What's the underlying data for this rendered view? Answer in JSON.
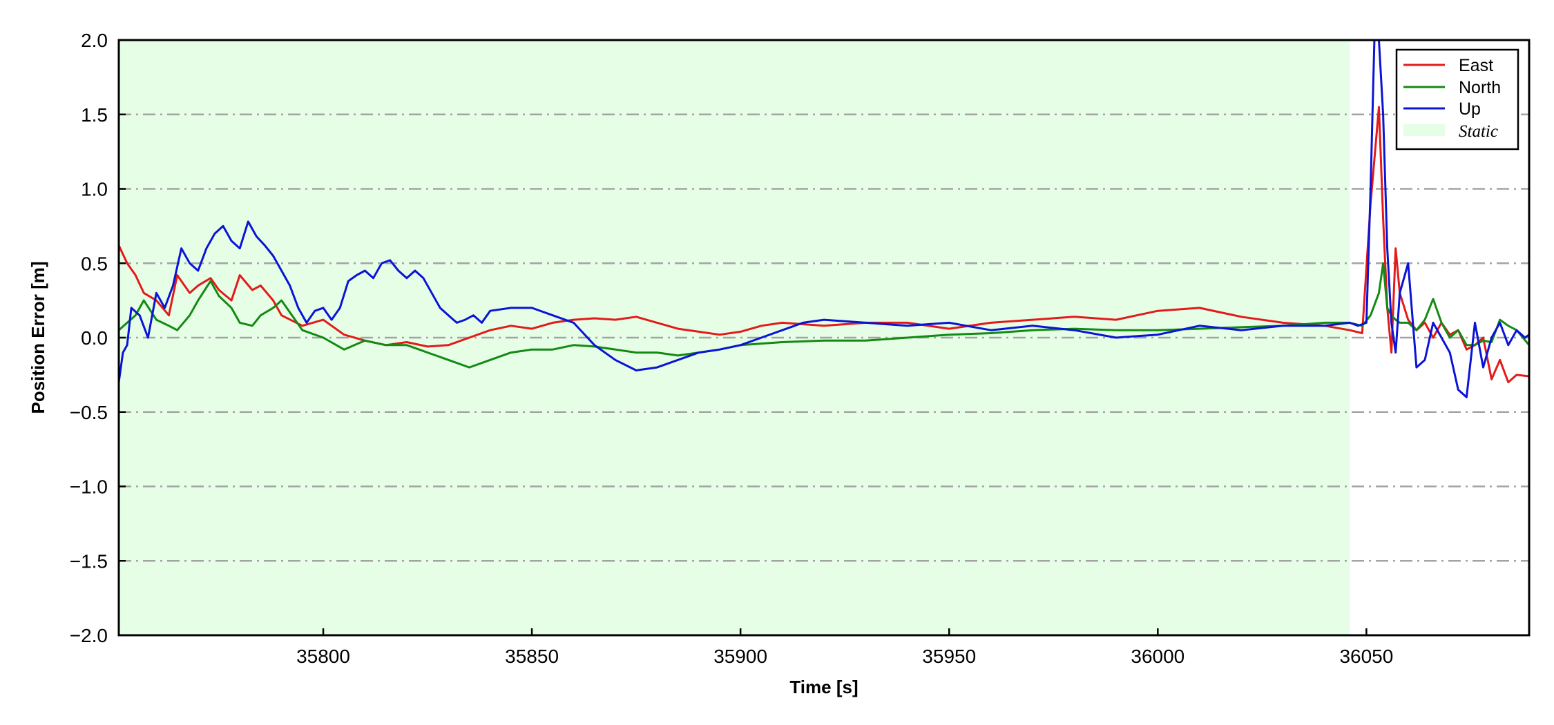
{
  "chart_data": {
    "type": "line",
    "title": "",
    "xlabel": "Time [s]",
    "ylabel": "Position Error [m]",
    "xlim": [
      35751,
      36089
    ],
    "ylim": [
      -2.0,
      2.0
    ],
    "xticks": [
      35800,
      35850,
      35900,
      35950,
      36000,
      36050
    ],
    "xtick_labels": [
      "35800",
      "35850",
      "35900",
      "35950",
      "36000",
      "36050"
    ],
    "yticks": [
      2.0,
      1.5,
      1.0,
      0.5,
      0.0,
      -0.5,
      -1.0,
      -1.5,
      -2.0
    ],
    "ytick_labels": [
      "2.0",
      "1.5",
      "1.0",
      "0.5",
      "0.0",
      "−0.5",
      "−1.0",
      "−1.5",
      "−2.0"
    ],
    "grid": "horizontal dash-dot",
    "legend_position": "top-right",
    "static_region": {
      "label": "Static",
      "x_start": 35751,
      "x_end": 36046,
      "color": "#e6fde6"
    },
    "series": [
      {
        "name": "East",
        "color": "#e41a1a",
        "x": [
          35751,
          35753,
          35755,
          35757,
          35760,
          35763,
          35765,
          35768,
          35770,
          35773,
          35775,
          35778,
          35780,
          35783,
          35785,
          35788,
          35790,
          35795,
          35800,
          35805,
          35810,
          35815,
          35820,
          35825,
          35830,
          35835,
          35840,
          35845,
          35850,
          35855,
          35860,
          35865,
          35870,
          35875,
          35880,
          35885,
          35890,
          35895,
          35900,
          35905,
          35910,
          35920,
          35930,
          35940,
          35950,
          35960,
          35970,
          35980,
          35990,
          36000,
          36010,
          36020,
          36030,
          36040,
          36046,
          36049,
          36051,
          36053,
          36054,
          36055,
          36056,
          36057,
          36058,
          36060,
          36062,
          36064,
          36066,
          36068,
          36070,
          36072,
          36074,
          36076,
          36078,
          36080,
          36082,
          36084,
          36086,
          36089
        ],
        "y": [
          0.62,
          0.5,
          0.42,
          0.3,
          0.25,
          0.15,
          0.42,
          0.3,
          0.35,
          0.4,
          0.32,
          0.25,
          0.42,
          0.32,
          0.35,
          0.25,
          0.15,
          0.08,
          0.12,
          0.02,
          -0.02,
          -0.05,
          -0.03,
          -0.06,
          -0.05,
          0.0,
          0.05,
          0.08,
          0.06,
          0.1,
          0.12,
          0.13,
          0.12,
          0.14,
          0.1,
          0.06,
          0.04,
          0.02,
          0.04,
          0.08,
          0.1,
          0.08,
          0.1,
          0.1,
          0.06,
          0.1,
          0.12,
          0.14,
          0.12,
          0.18,
          0.2,
          0.14,
          0.1,
          0.08,
          0.05,
          0.03,
          0.9,
          1.55,
          0.8,
          0.2,
          -0.1,
          0.6,
          0.3,
          0.12,
          0.05,
          0.1,
          0.0,
          0.1,
          0.02,
          0.05,
          -0.08,
          -0.05,
          0.0,
          -0.28,
          -0.15,
          -0.3,
          -0.25,
          -0.26
        ]
      },
      {
        "name": "North",
        "color": "#138a13",
        "x": [
          35751,
          35753,
          35755,
          35757,
          35760,
          35763,
          35765,
          35768,
          35770,
          35773,
          35775,
          35778,
          35780,
          35783,
          35785,
          35788,
          35790,
          35795,
          35800,
          35805,
          35810,
          35815,
          35820,
          35825,
          35830,
          35835,
          35840,
          35845,
          35850,
          35855,
          35860,
          35865,
          35870,
          35875,
          35880,
          35885,
          35890,
          35895,
          35900,
          35905,
          35910,
          35920,
          35930,
          35940,
          35950,
          35960,
          35970,
          35980,
          35990,
          36000,
          36010,
          36020,
          36030,
          36040,
          36046,
          36049,
          36051,
          36053,
          36054,
          36055,
          36056,
          36057,
          36058,
          36060,
          36062,
          36064,
          36066,
          36068,
          36070,
          36072,
          36074,
          36076,
          36078,
          36080,
          36082,
          36084,
          36086,
          36089
        ],
        "y": [
          0.05,
          0.1,
          0.15,
          0.25,
          0.12,
          0.08,
          0.05,
          0.15,
          0.25,
          0.38,
          0.28,
          0.2,
          0.1,
          0.08,
          0.15,
          0.2,
          0.25,
          0.05,
          0.0,
          -0.08,
          -0.02,
          -0.05,
          -0.05,
          -0.1,
          -0.15,
          -0.2,
          -0.15,
          -0.1,
          -0.08,
          -0.08,
          -0.05,
          -0.06,
          -0.08,
          -0.1,
          -0.1,
          -0.12,
          -0.1,
          -0.08,
          -0.05,
          -0.04,
          -0.03,
          -0.02,
          -0.02,
          0.0,
          0.02,
          0.03,
          0.05,
          0.06,
          0.05,
          0.05,
          0.06,
          0.07,
          0.08,
          0.1,
          0.1,
          0.08,
          0.15,
          0.3,
          0.5,
          0.2,
          0.15,
          0.12,
          0.1,
          0.1,
          0.05,
          0.12,
          0.26,
          0.1,
          0.0,
          0.05,
          -0.05,
          -0.05,
          -0.02,
          -0.03,
          0.12,
          0.08,
          0.05,
          -0.05
        ]
      },
      {
        "name": "Up",
        "color": "#0a14d6",
        "x": [
          35751,
          35752,
          35753,
          35754,
          35756,
          35758,
          35760,
          35762,
          35764,
          35766,
          35768,
          35770,
          35772,
          35774,
          35776,
          35778,
          35780,
          35782,
          35784,
          35786,
          35788,
          35790,
          35792,
          35794,
          35796,
          35798,
          35800,
          35802,
          35804,
          35806,
          35808,
          35810,
          35812,
          35814,
          35816,
          35818,
          35820,
          35822,
          35824,
          35826,
          35828,
          35830,
          35832,
          35834,
          35836,
          35838,
          35840,
          35845,
          35850,
          35855,
          35860,
          35865,
          35870,
          35875,
          35880,
          35885,
          35890,
          35895,
          35900,
          35905,
          35910,
          35915,
          35920,
          35930,
          35940,
          35950,
          35960,
          35970,
          35980,
          35990,
          36000,
          36010,
          36020,
          36030,
          36040,
          36046,
          36048,
          36050,
          36051,
          36052,
          36053,
          36054,
          36055,
          36056,
          36057,
          36058,
          36060,
          36062,
          36064,
          36066,
          36068,
          36070,
          36072,
          36074,
          36076,
          36078,
          36080,
          36082,
          36084,
          36086,
          36088,
          36089
        ],
        "y": [
          -0.3,
          -0.1,
          -0.05,
          0.2,
          0.15,
          0.0,
          0.3,
          0.2,
          0.35,
          0.6,
          0.5,
          0.45,
          0.6,
          0.7,
          0.75,
          0.65,
          0.6,
          0.78,
          0.68,
          0.62,
          0.55,
          0.45,
          0.35,
          0.2,
          0.1,
          0.18,
          0.2,
          0.12,
          0.2,
          0.38,
          0.42,
          0.45,
          0.4,
          0.5,
          0.52,
          0.45,
          0.4,
          0.45,
          0.4,
          0.3,
          0.2,
          0.15,
          0.1,
          0.12,
          0.15,
          0.1,
          0.18,
          0.2,
          0.2,
          0.15,
          0.1,
          -0.05,
          -0.15,
          -0.22,
          -0.2,
          -0.15,
          -0.1,
          -0.08,
          -0.05,
          0.0,
          0.05,
          0.1,
          0.12,
          0.1,
          0.08,
          0.1,
          0.05,
          0.08,
          0.05,
          0.0,
          0.02,
          0.08,
          0.05,
          0.08,
          0.08,
          0.1,
          0.08,
          0.1,
          1.0,
          2.1,
          2.0,
          1.5,
          0.6,
          0.1,
          -0.1,
          0.3,
          0.5,
          -0.2,
          -0.15,
          0.1,
          0.0,
          -0.1,
          -0.35,
          -0.4,
          0.1,
          -0.2,
          0.0,
          0.1,
          -0.05,
          0.05,
          0.0,
          0.02
        ]
      }
    ]
  }
}
